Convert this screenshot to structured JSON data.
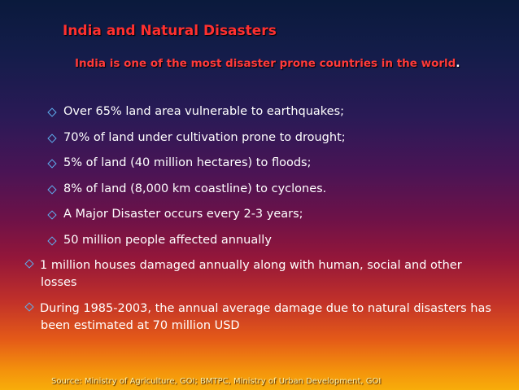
{
  "slide": {
    "title": "India and Natural Disasters",
    "subtitle": "India is one of the most disaster prone countries in the world",
    "subtitle_end": ".",
    "bullets": [
      "Over 65% land area vulnerable to earthquakes;",
      "70% of land under cultivation prone to drought;",
      "5% of land (40 million hectares) to floods;",
      "8% of land (8,000 km coastline) to cyclones.",
      "A Major Disaster occurs every 2-3 years;",
      "50 million people affected annually",
      "1 million houses damaged annually along with human, social and other losses",
      "During 1985-2003, the annual average damage due to natural disasters has been estimated at 70 million USD"
    ],
    "source": "Source: Ministry of Agriculture, GOI;  BMTPC, Ministry of Urban Development, GOI"
  },
  "colors": {
    "title": "#ff3030",
    "bullet_text": "#ffffff",
    "bullet_marker": "#5fb0f0",
    "source_text": "#fff2a8"
  },
  "icons": {
    "bullet": "diamond-bullet-icon"
  }
}
